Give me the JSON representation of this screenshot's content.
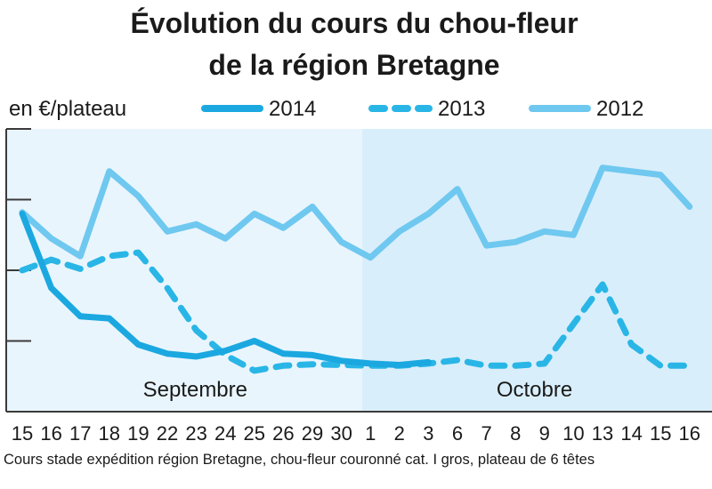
{
  "chart_data": {
    "type": "line",
    "title_line1": "Évolution du cours du chou-fleur",
    "title_line2": "de la région Bretagne",
    "ylabel": "en €/plateau",
    "xlabel": "",
    "categories": [
      "15",
      "16",
      "17",
      "18",
      "19",
      "22",
      "23",
      "24",
      "25",
      "26",
      "29",
      "30",
      "1",
      "2",
      "3",
      "6",
      "7",
      "8",
      "9",
      "10",
      "13",
      "14",
      "15",
      "16"
    ],
    "months": [
      {
        "label": "Septembre",
        "from": 0,
        "to": 11
      },
      {
        "label": "Octobre",
        "from": 12,
        "to": 23
      }
    ],
    "y_gridlines": [
      1,
      2,
      3,
      4
    ],
    "ylim": [
      0,
      4
    ],
    "grid": true,
    "legend_position": "top",
    "footnote": "Cours stade expédition région Bretagne, chou-fleur couronné cat. I gros, plateau de 6 têtes",
    "colors": {
      "background": "#ffffff",
      "panel_sept": "#e9f5fd",
      "panel_oct": "#d9eefb",
      "grid": "#3a3a3a",
      "series_2014": "#1ba8e0",
      "series_2013": "#29b6e6",
      "series_2012": "#6fc8ef"
    },
    "series": [
      {
        "name": "2014",
        "style": "solid",
        "values": [
          2.8,
          1.75,
          1.35,
          1.32,
          0.95,
          0.82,
          0.78,
          0.86,
          1.0,
          0.82,
          0.8,
          0.72,
          0.68,
          0.66,
          0.7,
          null,
          null,
          null,
          null,
          null,
          null,
          null,
          null,
          null
        ]
      },
      {
        "name": "2013",
        "style": "dashed",
        "values": [
          2.0,
          2.15,
          2.02,
          2.2,
          2.25,
          1.75,
          1.15,
          0.8,
          0.58,
          0.65,
          0.67,
          0.66,
          0.65,
          0.65,
          0.68,
          0.73,
          0.65,
          0.65,
          0.68,
          null,
          1.8,
          0.95,
          0.65,
          0.65
        ]
      },
      {
        "name": "2012",
        "style": "solid-light",
        "values": [
          2.82,
          2.45,
          2.2,
          3.4,
          3.05,
          2.55,
          2.65,
          2.45,
          2.8,
          2.6,
          2.9,
          2.4,
          2.18,
          2.55,
          2.8,
          3.15,
          2.35,
          2.4,
          2.55,
          2.5,
          3.45,
          3.4,
          3.35,
          2.9
        ]
      }
    ]
  }
}
